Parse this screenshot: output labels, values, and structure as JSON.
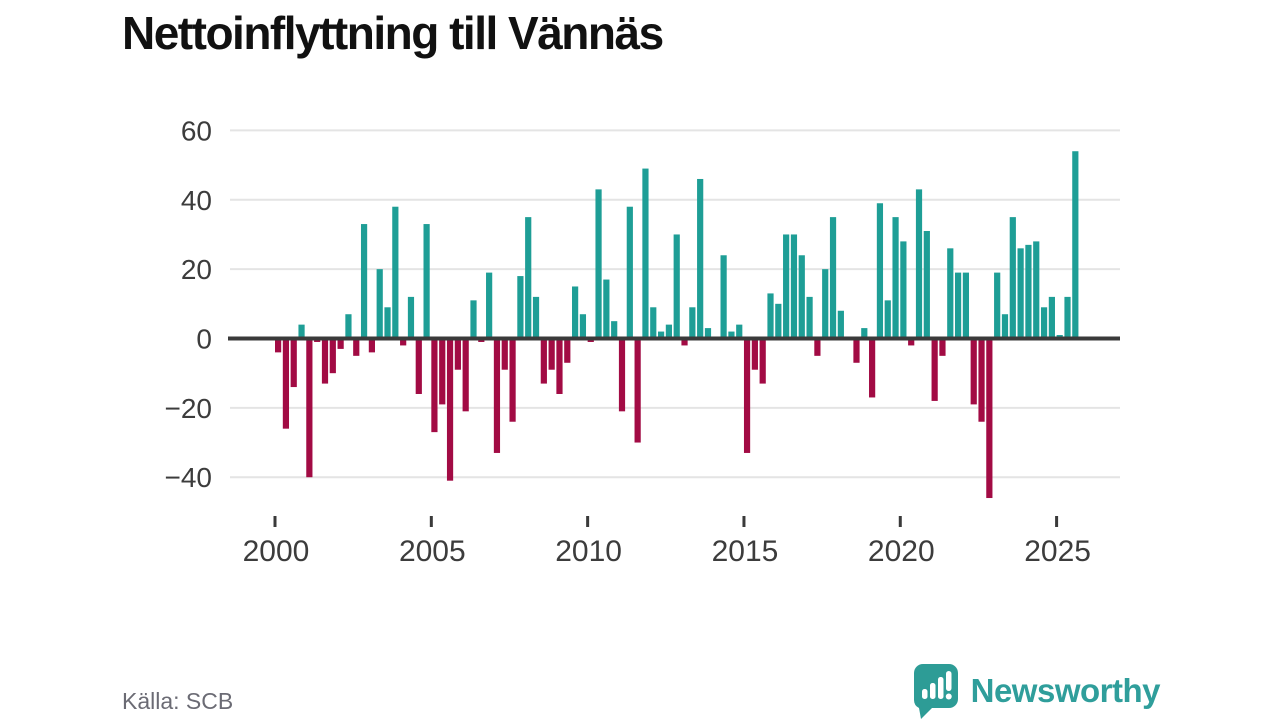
{
  "title": "Nettoinflyttning till Vännäs",
  "source": "Källa: SCB",
  "branding": {
    "name": "Newsworthy"
  },
  "colors": {
    "positive_bar": "#1e9e96",
    "negative_bar": "#a20b44",
    "zero_line": "#3a3a3a",
    "gridline": "#e4e4e4",
    "axis_text": "#3c3c3c",
    "tick_mark": "#3a3a3a",
    "source_text": "#6b6b74",
    "brand": "#2f9e9b",
    "background": "#ffffff"
  },
  "chart_data": {
    "type": "bar",
    "title": "Nettoinflyttning till Vännäs",
    "start": "2000-Q1",
    "frequency": "quarterly",
    "values": [
      -4,
      -26,
      -14,
      4,
      -40,
      -1,
      -13,
      -10,
      -3,
      7,
      -5,
      33,
      -4,
      20,
      9,
      38,
      -2,
      12,
      -16,
      33,
      -27,
      -19,
      -41,
      -9,
      -21,
      11,
      -1,
      19,
      -33,
      -9,
      -24,
      18,
      35,
      12,
      -13,
      -9,
      -16,
      -7,
      15,
      7,
      -1,
      43,
      17,
      5,
      -21,
      38,
      -30,
      49,
      9,
      2,
      4,
      30,
      -2,
      9,
      46,
      3,
      0,
      24,
      2,
      4,
      -33,
      -9,
      -13,
      13,
      10,
      30,
      30,
      24,
      12,
      -5,
      20,
      35,
      8,
      0,
      -7,
      3,
      -17,
      39,
      11,
      35,
      28,
      -2,
      43,
      31,
      -18,
      -5,
      26,
      19,
      19,
      -19,
      -24,
      -46,
      19,
      7,
      35,
      26,
      27,
      28,
      9,
      12,
      1,
      12,
      54
    ],
    "x_tick_labels": [
      "2000",
      "2005",
      "2010",
      "2015",
      "2020",
      "2025"
    ],
    "x_tick_every_n_bars": 20,
    "y_ticks": [
      60,
      40,
      20,
      0,
      -20,
      -40
    ],
    "ylim": [
      -50,
      62
    ],
    "grid": "horizontal",
    "legend": "none",
    "bar_color_rule": "teal when value >= 0, crimson when value < 0"
  }
}
